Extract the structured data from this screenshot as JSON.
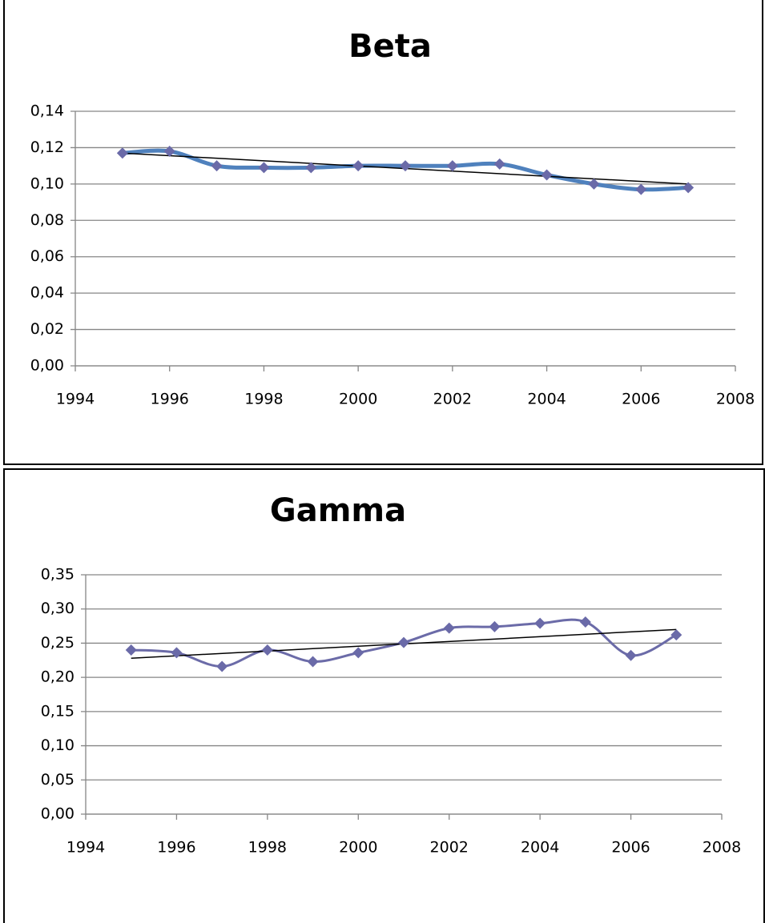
{
  "chart_data": [
    {
      "type": "line",
      "title": "Beta",
      "x": [
        1995,
        1996,
        1997,
        1998,
        1999,
        2000,
        2001,
        2002,
        2003,
        2004,
        2005,
        2006,
        2007
      ],
      "values": [
        0.117,
        0.118,
        0.11,
        0.109,
        0.109,
        0.11,
        0.11,
        0.11,
        0.111,
        0.105,
        0.1,
        0.097,
        0.098
      ],
      "color": "#4f81bd",
      "marker_color": "#6a6aa8",
      "smooth": true,
      "grid": true,
      "trend": {
        "x": [
          1995,
          2007
        ],
        "values": [
          0.117,
          0.1
        ],
        "color": "#000000"
      },
      "xlim": [
        1994,
        2008
      ],
      "xticks": [
        1994,
        1996,
        1998,
        2000,
        2002,
        2004,
        2006,
        2008
      ],
      "ylim": [
        0,
        0.14
      ],
      "yticks": [
        {
          "value": 0,
          "label": "0,00"
        },
        {
          "value": 0.02,
          "label": "0,02"
        },
        {
          "value": 0.04,
          "label": "0,04"
        },
        {
          "value": 0.06,
          "label": "0,06"
        },
        {
          "value": 0.08,
          "label": "0,08"
        },
        {
          "value": 0.1,
          "label": "0,10"
        },
        {
          "value": 0.12,
          "label": "0,12"
        },
        {
          "value": 0.14,
          "label": "0,14"
        }
      ]
    },
    {
      "type": "line",
      "title": "Gamma",
      "x": [
        1995,
        1996,
        1997,
        1998,
        1999,
        2000,
        2001,
        2002,
        2003,
        2004,
        2005,
        2006,
        2007
      ],
      "values": [
        0.24,
        0.236,
        0.216,
        0.24,
        0.223,
        0.236,
        0.251,
        0.272,
        0.274,
        0.279,
        0.281,
        0.232,
        0.262
      ],
      "color": "#6b6ba8",
      "marker_color": "#6a6aa8",
      "smooth": true,
      "grid": true,
      "trend": {
        "x": [
          1995,
          2007
        ],
        "values": [
          0.228,
          0.27
        ],
        "color": "#000000"
      },
      "xlim": [
        1994,
        2008
      ],
      "xticks": [
        1994,
        1996,
        1998,
        2000,
        2002,
        2004,
        2006,
        2008
      ],
      "ylim": [
        0,
        0.35
      ],
      "yticks": [
        {
          "value": 0,
          "label": "0,00"
        },
        {
          "value": 0.05,
          "label": "0,05"
        },
        {
          "value": 0.1,
          "label": "0,10"
        },
        {
          "value": 0.15,
          "label": "0,15"
        },
        {
          "value": 0.2,
          "label": "0,20"
        },
        {
          "value": 0.25,
          "label": "0,25"
        },
        {
          "value": 0.3,
          "label": "0,30"
        },
        {
          "value": 0.35,
          "label": "0,35"
        }
      ]
    }
  ]
}
